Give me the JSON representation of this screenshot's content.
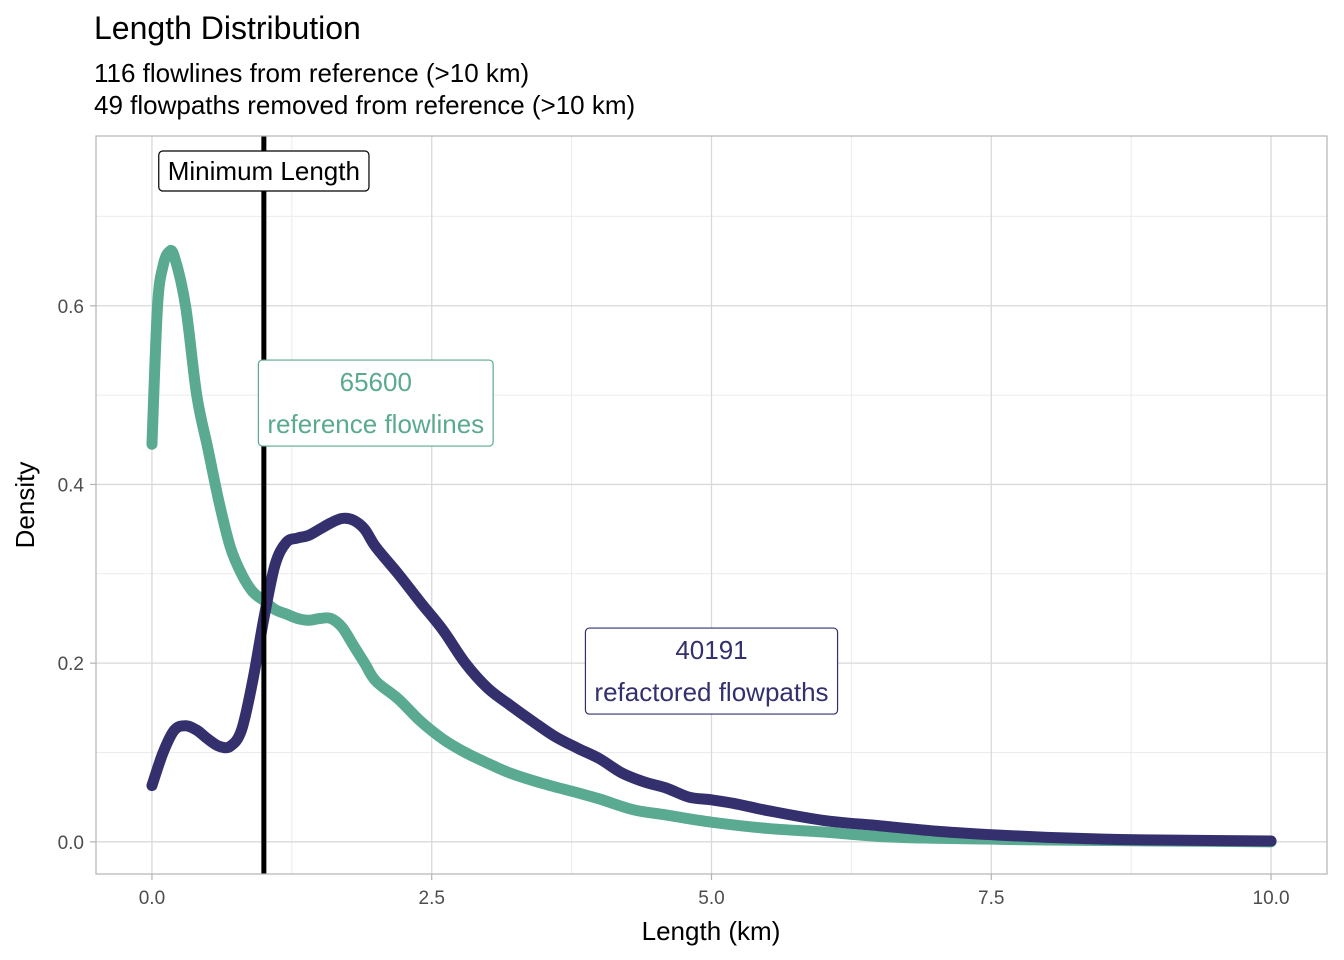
{
  "chart_data": {
    "type": "line",
    "title": "Length Distribution",
    "subtitle_lines": [
      "116 flowlines from reference (>10 km)",
      "49 flowpaths removed from reference (>10 km)"
    ],
    "xlabel": "Length (km)",
    "ylabel": "Density",
    "xlim": [
      -0.5,
      10.5
    ],
    "ylim": [
      -0.036,
      0.79
    ],
    "x_ticks": [
      0.0,
      2.5,
      5.0,
      7.5,
      10.0
    ],
    "x_tick_labels": [
      "0.0",
      "2.5",
      "5.0",
      "7.5",
      "10.0"
    ],
    "y_ticks": [
      0.0,
      0.2,
      0.4,
      0.6
    ],
    "y_tick_labels": [
      "0.0",
      "0.2",
      "0.4",
      "0.6"
    ],
    "grid": true,
    "reference_line": {
      "x": 1.0,
      "label": "Minimum Length",
      "color": "#000000"
    },
    "series": [
      {
        "color": "#5aa991",
        "annotation": {
          "count": "65600",
          "text": "reference flowlines",
          "x": 2.0,
          "y": 0.49
        },
        "points": [
          [
            0.0,
            0.445
          ],
          [
            0.05,
            0.6
          ],
          [
            0.1,
            0.645
          ],
          [
            0.15,
            0.66
          ],
          [
            0.2,
            0.655
          ],
          [
            0.3,
            0.6
          ],
          [
            0.4,
            0.5
          ],
          [
            0.5,
            0.44
          ],
          [
            0.6,
            0.38
          ],
          [
            0.7,
            0.33
          ],
          [
            0.8,
            0.3
          ],
          [
            0.9,
            0.28
          ],
          [
            1.0,
            0.27
          ],
          [
            1.1,
            0.26
          ],
          [
            1.2,
            0.255
          ],
          [
            1.3,
            0.25
          ],
          [
            1.4,
            0.248
          ],
          [
            1.5,
            0.25
          ],
          [
            1.6,
            0.25
          ],
          [
            1.7,
            0.24
          ],
          [
            1.8,
            0.22
          ],
          [
            1.9,
            0.2
          ],
          [
            2.0,
            0.18
          ],
          [
            2.2,
            0.16
          ],
          [
            2.4,
            0.135
          ],
          [
            2.6,
            0.115
          ],
          [
            2.8,
            0.1
          ],
          [
            3.0,
            0.088
          ],
          [
            3.2,
            0.077
          ],
          [
            3.5,
            0.065
          ],
          [
            3.8,
            0.055
          ],
          [
            4.0,
            0.048
          ],
          [
            4.3,
            0.036
          ],
          [
            4.6,
            0.03
          ],
          [
            5.0,
            0.022
          ],
          [
            5.5,
            0.015
          ],
          [
            6.0,
            0.011
          ],
          [
            6.5,
            0.006
          ],
          [
            7.0,
            0.004
          ],
          [
            7.5,
            0.003
          ],
          [
            8.0,
            0.002
          ],
          [
            9.0,
            0.001
          ],
          [
            10.0,
            0.0
          ]
        ]
      },
      {
        "color": "#33306d",
        "annotation": {
          "count": "40191",
          "text": "refactored flowpaths",
          "x": 5.0,
          "y": 0.19
        },
        "points": [
          [
            0.0,
            0.063
          ],
          [
            0.1,
            0.1
          ],
          [
            0.2,
            0.125
          ],
          [
            0.3,
            0.13
          ],
          [
            0.4,
            0.125
          ],
          [
            0.5,
            0.115
          ],
          [
            0.6,
            0.107
          ],
          [
            0.7,
            0.107
          ],
          [
            0.8,
            0.125
          ],
          [
            0.9,
            0.18
          ],
          [
            1.0,
            0.25
          ],
          [
            1.1,
            0.31
          ],
          [
            1.2,
            0.335
          ],
          [
            1.3,
            0.34
          ],
          [
            1.4,
            0.343
          ],
          [
            1.5,
            0.35
          ],
          [
            1.6,
            0.357
          ],
          [
            1.7,
            0.362
          ],
          [
            1.8,
            0.36
          ],
          [
            1.9,
            0.35
          ],
          [
            2.0,
            0.33
          ],
          [
            2.2,
            0.3
          ],
          [
            2.4,
            0.268
          ],
          [
            2.6,
            0.237
          ],
          [
            2.8,
            0.2
          ],
          [
            3.0,
            0.172
          ],
          [
            3.2,
            0.153
          ],
          [
            3.4,
            0.135
          ],
          [
            3.6,
            0.118
          ],
          [
            3.8,
            0.105
          ],
          [
            4.0,
            0.093
          ],
          [
            4.2,
            0.077
          ],
          [
            4.4,
            0.067
          ],
          [
            4.6,
            0.06
          ],
          [
            4.8,
            0.05
          ],
          [
            5.0,
            0.047
          ],
          [
            5.2,
            0.043
          ],
          [
            5.5,
            0.035
          ],
          [
            6.0,
            0.024
          ],
          [
            6.5,
            0.018
          ],
          [
            7.0,
            0.012
          ],
          [
            7.5,
            0.008
          ],
          [
            8.0,
            0.005
          ],
          [
            8.5,
            0.003
          ],
          [
            9.0,
            0.002
          ],
          [
            10.0,
            0.001
          ]
        ]
      }
    ]
  }
}
